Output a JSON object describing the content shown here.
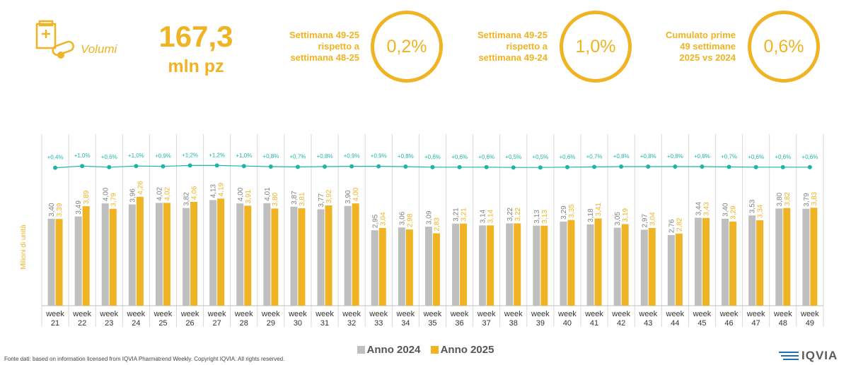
{
  "kpi": {
    "icon": "pill-box-icon",
    "label": "Volumi",
    "value": "167,3",
    "unit": "mln pz"
  },
  "comparisons": [
    {
      "label_lines": [
        "Settimana 49-25",
        "rispetto a",
        "settimana 48-25"
      ],
      "value": "0,2%"
    },
    {
      "label_lines": [
        "Settimana 49-25",
        "rispetto a",
        "settimana 49-24"
      ],
      "value": "1,0%"
    },
    {
      "label_lines": [
        "Cumulato prime",
        "49 settimane",
        "2025 vs 2024"
      ],
      "value": "0,6%"
    }
  ],
  "colors": {
    "accent": "#F0B323",
    "series_2024": "#BFBFBF",
    "series_2025": "#F0B323",
    "trend_line": "#1FB5A6"
  },
  "chart_data": {
    "type": "bar",
    "ylabel": "Milioni di unità",
    "categories": [
      [
        "week",
        "21"
      ],
      [
        "week",
        "22"
      ],
      [
        "week",
        "23"
      ],
      [
        "week",
        "24"
      ],
      [
        "week",
        "25"
      ],
      [
        "week",
        "26"
      ],
      [
        "week",
        "27"
      ],
      [
        "week",
        "28"
      ],
      [
        "week",
        "29"
      ],
      [
        "week",
        "30"
      ],
      [
        "week",
        "31"
      ],
      [
        "week",
        "32"
      ],
      [
        "week",
        "33"
      ],
      [
        "week",
        "34"
      ],
      [
        "week",
        "35"
      ],
      [
        "week",
        "36"
      ],
      [
        "week",
        "37"
      ],
      [
        "week",
        "38"
      ],
      [
        "week",
        "39"
      ],
      [
        "week",
        "40"
      ],
      [
        "week",
        "41"
      ],
      [
        "week",
        "42"
      ],
      [
        "week",
        "43"
      ],
      [
        "week",
        "44"
      ],
      [
        "week",
        "45"
      ],
      [
        "week",
        "46"
      ],
      [
        "week",
        "47"
      ],
      [
        "week",
        "48"
      ],
      [
        "week",
        "49"
      ]
    ],
    "series": [
      {
        "name": "Anno 2024",
        "values": [
          3.4,
          3.49,
          4.0,
          3.96,
          4.02,
          3.82,
          4.13,
          4.0,
          4.01,
          3.87,
          3.77,
          3.9,
          2.95,
          3.06,
          3.09,
          3.21,
          3.14,
          3.22,
          3.13,
          3.29,
          3.18,
          3.05,
          2.97,
          2.76,
          3.44,
          3.4,
          3.53,
          3.8,
          3.79
        ],
        "labels": [
          "3,40",
          "3,49",
          "4,00",
          "3,96",
          "4,02",
          "3,82",
          "4,13",
          "4,00",
          "4,01",
          "3,87",
          "3,77",
          "3,90",
          "2,95",
          "3,06",
          "3,09",
          "3,21",
          "3,14",
          "3,22",
          "3,13",
          "3,29",
          "3,18",
          "3,05",
          "2,97",
          "2,76",
          "3,44",
          "3,40",
          "3,53",
          "3,80",
          "3,79"
        ]
      },
      {
        "name": "Anno 2025",
        "values": [
          3.39,
          3.89,
          3.79,
          4.26,
          4.02,
          4.06,
          4.19,
          3.91,
          3.8,
          3.81,
          3.92,
          4.0,
          3.04,
          2.98,
          2.83,
          3.21,
          3.14,
          3.22,
          3.13,
          3.35,
          3.41,
          3.19,
          3.04,
          2.82,
          3.43,
          3.29,
          3.34,
          3.82,
          3.83
        ],
        "labels": [
          "3,39",
          "3,89",
          "3,79",
          "4,26",
          "4,02",
          "4,06",
          "4,19",
          "3,91",
          "3,80",
          "3,81",
          "3,92",
          "4,00",
          "3,04",
          "2,98",
          "2,83",
          "3,21",
          "3,14",
          "3,22",
          "3,13",
          "3,35",
          "3,41",
          "3,19",
          "3,04",
          "2,82",
          "3,43",
          "3,29",
          "3,34",
          "3,82",
          "3,83"
        ]
      }
    ],
    "cumulative_growth": {
      "values": [
        0.4,
        1.0,
        0.6,
        1.0,
        0.9,
        1.2,
        1.2,
        1.0,
        0.8,
        0.7,
        0.8,
        0.9,
        0.9,
        0.8,
        0.6,
        0.6,
        0.6,
        0.5,
        0.5,
        0.6,
        0.7,
        0.8,
        0.8,
        0.8,
        0.8,
        0.7,
        0.6,
        0.6,
        0.6
      ],
      "labels": [
        "+0,4%",
        "+1,0%",
        "+0,6%",
        "+1,0%",
        "+0,9%",
        "+1,2%",
        "+1,2%",
        "+1,0%",
        "+0,8%",
        "+0,7%",
        "+0,8%",
        "+0,9%",
        "+0,9%",
        "+0,8%",
        "+0,6%",
        "+0,6%",
        "+0,6%",
        "+0,5%",
        "+0,5%",
        "+0,6%",
        "+0,7%",
        "+0,8%",
        "+0,8%",
        "+0,8%",
        "+0,8%",
        "+0,7%",
        "+0,6%",
        "+0,6%",
        "+0,6%"
      ]
    },
    "ylim": [
      0,
      4.5
    ],
    "legend_position": "bottom"
  },
  "footer": {
    "source": "Fonte dati: based on information licensed from IQVIA Pharmatrend Weekly. Copyright IQVIA. All rights reserved.",
    "logo_text": "IQVIA"
  }
}
